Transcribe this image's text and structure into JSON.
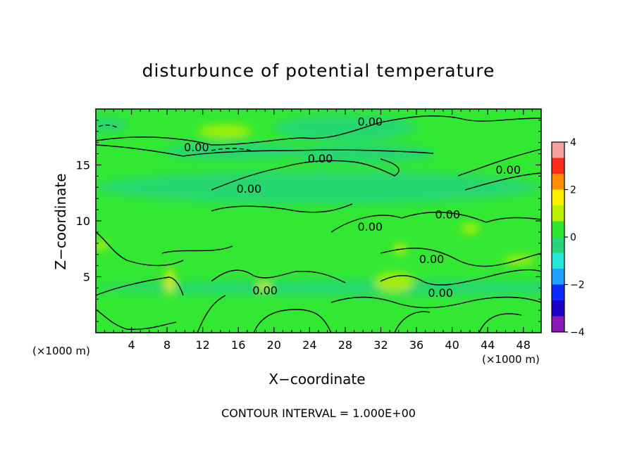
{
  "chart_data": {
    "type": "heatmap",
    "title": "disturbunce of potential temperature",
    "xlabel": "X−coordinate",
    "ylabel": "Z−coordinate",
    "x_unit_label": "(×1000 m)",
    "x_unit_label_right": "(×1000 m)",
    "xlim": [
      0,
      50
    ],
    "ylim": [
      0,
      20
    ],
    "x_ticks": [
      4,
      8,
      12,
      16,
      20,
      24,
      28,
      32,
      36,
      40,
      44,
      48
    ],
    "y_ticks": [
      5,
      10,
      15
    ],
    "colorbar": {
      "ticks": [
        4,
        2,
        0,
        -2,
        -4
      ],
      "range": [
        -4,
        4
      ],
      "colors": [
        "#f6a0a0",
        "#ff2a1a",
        "#ff8c00",
        "#ffee00",
        "#b8f000",
        "#2ee62e",
        "#27d47a",
        "#22e6d6",
        "#1ea0ff",
        "#0a2aff",
        "#1a00c8",
        "#8c1ab8"
      ]
    },
    "contour_interval": "CONTOUR INTERVAL = 1.000E+00",
    "contour_labels": [
      {
        "text": "0.00",
        "x": 30.8,
        "y": 18.9
      },
      {
        "text": "0.00",
        "x": 11.3,
        "y": 16.6
      },
      {
        "text": "0.00",
        "x": 25.2,
        "y": 15.6
      },
      {
        "text": "0.00",
        "x": 46.3,
        "y": 14.6
      },
      {
        "text": "0.00",
        "x": 17.2,
        "y": 12.9
      },
      {
        "text": "0.00",
        "x": 39.5,
        "y": 10.6
      },
      {
        "text": "0.00",
        "x": 30.8,
        "y": 9.5
      },
      {
        "text": "0.00",
        "x": 37.7,
        "y": 6.6
      },
      {
        "text": "0.00",
        "x": 19.0,
        "y": 3.8
      },
      {
        "text": "0.00",
        "x": 38.7,
        "y": 3.6
      }
    ],
    "features": [
      {
        "kind": "warm",
        "cx": 14.5,
        "cy": 18.0,
        "rx": 3.0,
        "ry": 0.6,
        "v": 1.3
      },
      {
        "kind": "cool",
        "cx": 1.0,
        "cy": 18.6,
        "rx": 2.5,
        "ry": 0.7,
        "v": -0.7
      },
      {
        "kind": "cool",
        "cx": 15.5,
        "cy": 16.2,
        "rx": 8.0,
        "ry": 0.8,
        "v": -0.4
      },
      {
        "kind": "cool",
        "cx": 28.0,
        "cy": 18.3,
        "rx": 8.0,
        "ry": 1.2,
        "v": -0.3
      },
      {
        "kind": "cool",
        "cx": 30.0,
        "cy": 16.0,
        "rx": 8.0,
        "ry": 0.9,
        "v": -0.35
      },
      {
        "kind": "cool",
        "cx": 30.0,
        "cy": 4.0,
        "rx": 30.0,
        "ry": 0.7,
        "v": -0.25
      },
      {
        "kind": "cool",
        "cx": 25.0,
        "cy": 13.0,
        "rx": 25.0,
        "ry": 1.5,
        "v": -0.15
      },
      {
        "kind": "warm",
        "cx": 33.5,
        "cy": 4.5,
        "rx": 2.2,
        "ry": 0.9,
        "v": 1.4
      },
      {
        "kind": "warm",
        "cx": 34.2,
        "cy": 7.5,
        "rx": 0.7,
        "ry": 0.4,
        "v": 2.0
      },
      {
        "kind": "warm",
        "cx": 8.3,
        "cy": 4.6,
        "rx": 0.5,
        "ry": 1.2,
        "v": 1.8
      },
      {
        "kind": "warm",
        "cx": 0.6,
        "cy": 7.8,
        "rx": 0.6,
        "ry": 0.4,
        "v": 1.7
      },
      {
        "kind": "warm",
        "cx": 18.9,
        "cy": 4.2,
        "rx": 0.6,
        "ry": 0.4,
        "v": 1.5
      },
      {
        "kind": "warm",
        "cx": 47.5,
        "cy": 6.5,
        "rx": 1.8,
        "ry": 0.4,
        "v": 1.2
      },
      {
        "kind": "warm",
        "cx": 42.0,
        "cy": 9.3,
        "rx": 1.0,
        "ry": 0.5,
        "v": 1.0
      }
    ]
  }
}
